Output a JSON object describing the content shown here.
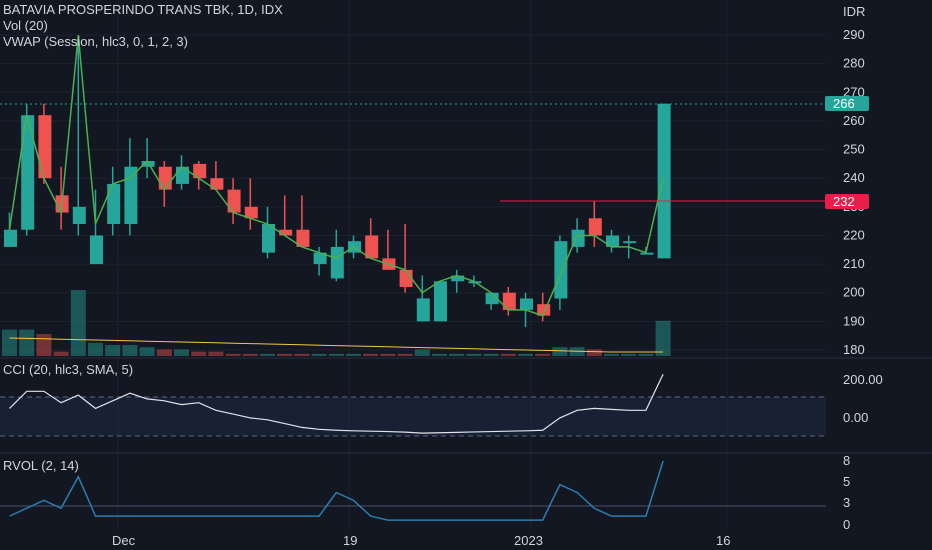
{
  "header": {
    "symbol_line": "BATAVIA PROSPERINDO TRANS TBK, 1D, IDX",
    "vol_label": "Vol (20)",
    "vwap_label": "VWAP (Session, hlc3, 0, 1, 2, 3)",
    "currency": "IDR"
  },
  "colors": {
    "background": "#131722",
    "up": "#26a69a",
    "down": "#ef5350",
    "vwap_line": "#4caf50",
    "vol_ma": "#f5c542",
    "cci_line": "#e0e3eb",
    "cci_band": "#1e2a44",
    "rvol_line": "#2a7fb0",
    "price_badge": "#26a69a",
    "level_badge": "#e91e4a",
    "grid": "#1e222d"
  },
  "price_axis": {
    "ticks": [
      "290",
      "280",
      "270",
      "260",
      "250",
      "240",
      "230",
      "220",
      "210",
      "200",
      "190",
      "180"
    ],
    "last_price_label": "266",
    "level_label": "232"
  },
  "time_axis": {
    "labels": [
      "Dec",
      "19",
      "2023",
      "16"
    ]
  },
  "cci_panel": {
    "label": "CCI (20, hlc3, SMA, 5)",
    "ticks": [
      "200.00",
      "0.00"
    ]
  },
  "rvol_panel": {
    "label": "RVOL (2, 14)",
    "ticks": [
      "8",
      "5",
      "3",
      "0"
    ]
  },
  "chart_data": {
    "type": "candlestick",
    "title": "BATAVIA PROSPERINDO TRANS TBK, 1D, IDX",
    "ylim": [
      178,
      296
    ],
    "horizontal_level": 232,
    "last_price": 266,
    "candles": [
      {
        "o": 216,
        "h": 228,
        "l": 216,
        "c": 222,
        "v": 12
      },
      {
        "o": 222,
        "h": 266,
        "l": 220,
        "c": 262,
        "v": 12
      },
      {
        "o": 262,
        "h": 266,
        "l": 238,
        "c": 240,
        "v": 10
      },
      {
        "o": 234,
        "h": 244,
        "l": 222,
        "c": 228,
        "v": 2
      },
      {
        "o": 224,
        "h": 290,
        "l": 220,
        "c": 230,
        "v": 30
      },
      {
        "o": 210,
        "h": 236,
        "l": 210,
        "c": 220,
        "v": 6
      },
      {
        "o": 224,
        "h": 244,
        "l": 220,
        "c": 238,
        "v": 5
      },
      {
        "o": 224,
        "h": 254,
        "l": 220,
        "c": 244,
        "v": 5
      },
      {
        "o": 244,
        "h": 254,
        "l": 240,
        "c": 246,
        "v": 4
      },
      {
        "o": 244,
        "h": 246,
        "l": 230,
        "c": 236,
        "v": 3
      },
      {
        "o": 238,
        "h": 248,
        "l": 236,
        "c": 244,
        "v": 3
      },
      {
        "o": 245,
        "h": 246,
        "l": 236,
        "c": 240,
        "v": 2
      },
      {
        "o": 240,
        "h": 246,
        "l": 236,
        "c": 236,
        "v": 2
      },
      {
        "o": 236,
        "h": 240,
        "l": 224,
        "c": 228,
        "v": 1
      },
      {
        "o": 230,
        "h": 240,
        "l": 222,
        "c": 226,
        "v": 1
      },
      {
        "o": 214,
        "h": 230,
        "l": 212,
        "c": 224,
        "v": 1
      },
      {
        "o": 222,
        "h": 234,
        "l": 220,
        "c": 220,
        "v": 1
      },
      {
        "o": 222,
        "h": 234,
        "l": 216,
        "c": 216,
        "v": 1
      },
      {
        "o": 210,
        "h": 216,
        "l": 206,
        "c": 214,
        "v": 1
      },
      {
        "o": 205,
        "h": 222,
        "l": 204,
        "c": 216,
        "v": 1
      },
      {
        "o": 214,
        "h": 220,
        "l": 212,
        "c": 218,
        "v": 1
      },
      {
        "o": 220,
        "h": 226,
        "l": 212,
        "c": 212,
        "v": 1
      },
      {
        "o": 212,
        "h": 222,
        "l": 208,
        "c": 208,
        "v": 1
      },
      {
        "o": 208,
        "h": 224,
        "l": 200,
        "c": 202,
        "v": 1
      },
      {
        "o": 190,
        "h": 206,
        "l": 190,
        "c": 198,
        "v": 3
      },
      {
        "o": 190,
        "h": 204,
        "l": 190,
        "c": 204,
        "v": 1
      },
      {
        "o": 204,
        "h": 208,
        "l": 200,
        "c": 206,
        "v": 1
      },
      {
        "o": 204,
        "h": 206,
        "l": 202,
        "c": 204,
        "v": 1
      },
      {
        "o": 196,
        "h": 200,
        "l": 194,
        "c": 200,
        "v": 1
      },
      {
        "o": 200,
        "h": 202,
        "l": 192,
        "c": 194,
        "v": 1
      },
      {
        "o": 194,
        "h": 200,
        "l": 188,
        "c": 198,
        "v": 1
      },
      {
        "o": 196,
        "h": 200,
        "l": 190,
        "c": 192,
        "v": 1
      },
      {
        "o": 198,
        "h": 220,
        "l": 194,
        "c": 218,
        "v": 4
      },
      {
        "o": 216,
        "h": 226,
        "l": 214,
        "c": 222,
        "v": 4
      },
      {
        "o": 226,
        "h": 232,
        "l": 216,
        "c": 220,
        "v": 3
      },
      {
        "o": 216,
        "h": 222,
        "l": 214,
        "c": 220,
        "v": 1
      },
      {
        "o": 218,
        "h": 220,
        "l": 212,
        "c": 218,
        "v": 1
      },
      {
        "o": 214,
        "h": 216,
        "l": 214,
        "c": 214,
        "v": 1
      },
      {
        "o": 212,
        "h": 266,
        "l": 212,
        "c": 266,
        "v": 16
      }
    ],
    "vwap_points": [
      222,
      262,
      240,
      228,
      290,
      224,
      238,
      240,
      246,
      236,
      244,
      240,
      236,
      228,
      226,
      224,
      220,
      216,
      214,
      212,
      216,
      212,
      210,
      208,
      200,
      204,
      206,
      204,
      200,
      194,
      194,
      192,
      206,
      220,
      220,
      216,
      216,
      214,
      240
    ],
    "cci_points": [
      40,
      130,
      130,
      70,
      110,
      40,
      80,
      120,
      90,
      80,
      60,
      70,
      30,
      10,
      -10,
      -20,
      -40,
      -60,
      -70,
      -75,
      -78,
      -80,
      -82,
      -85,
      -90,
      -88,
      -86,
      -84,
      -82,
      -80,
      -78,
      -75,
      -10,
      30,
      40,
      35,
      30,
      30,
      220
    ],
    "rvol_points": [
      1,
      2,
      3,
      2,
      6,
      1,
      1,
      1,
      1,
      1,
      1,
      1,
      1,
      1,
      1,
      1,
      1,
      1,
      1,
      4,
      3,
      1,
      0.5,
      0.5,
      0.5,
      0.5,
      0.5,
      0.5,
      0.5,
      0.5,
      0.5,
      0.5,
      5,
      4,
      2,
      1,
      1,
      1,
      8
    ]
  }
}
